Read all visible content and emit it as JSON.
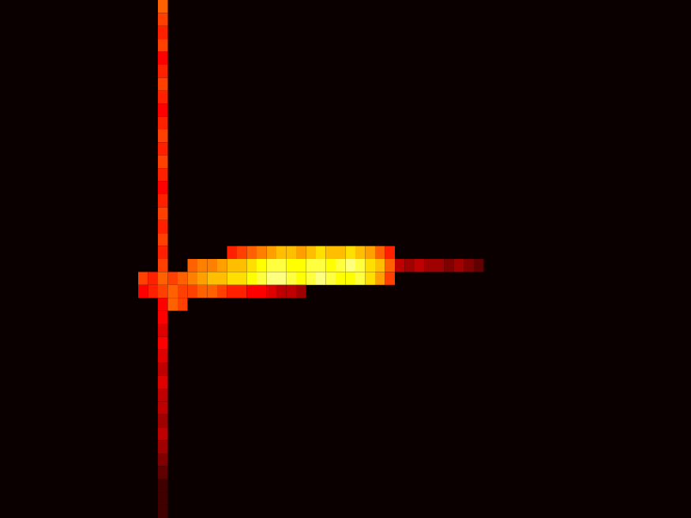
{
  "chart_data": {
    "type": "heatmap",
    "xlim": [
      0,
      70
    ],
    "ylim": [
      0,
      40
    ],
    "tick_labels": false,
    "color_range": [
      0,
      1
    ],
    "cells": [
      [
        16.5,
        39.5,
        0.55
      ],
      [
        16.5,
        38.5,
        0.5
      ],
      [
        16.5,
        37.5,
        0.45
      ],
      [
        16.5,
        36.5,
        0.5
      ],
      [
        16.5,
        35.5,
        0.4
      ],
      [
        16.5,
        34.5,
        0.45
      ],
      [
        16.5,
        33.5,
        0.5
      ],
      [
        16.5,
        32.5,
        0.45
      ],
      [
        16.5,
        31.5,
        0.4
      ],
      [
        16.5,
        30.5,
        0.45
      ],
      [
        16.5,
        29.5,
        0.5
      ],
      [
        16.5,
        28.5,
        0.45
      ],
      [
        16.5,
        27.5,
        0.5
      ],
      [
        16.5,
        26.5,
        0.45
      ],
      [
        16.5,
        25.5,
        0.4
      ],
      [
        16.5,
        24.5,
        0.45
      ],
      [
        16.5,
        23.5,
        0.5
      ],
      [
        16.5,
        22.5,
        0.45
      ],
      [
        16.5,
        21.5,
        0.5
      ],
      [
        16.5,
        15.5,
        0.4
      ],
      [
        16.5,
        14.5,
        0.35
      ],
      [
        16.5,
        13.5,
        0.4
      ],
      [
        16.5,
        12.5,
        0.35
      ],
      [
        16.5,
        11.5,
        0.3
      ],
      [
        16.5,
        10.5,
        0.35
      ],
      [
        16.5,
        9.5,
        0.3
      ],
      [
        16.5,
        8.5,
        0.3
      ],
      [
        16.5,
        7.5,
        0.25
      ],
      [
        16.5,
        6.5,
        0.3
      ],
      [
        16.5,
        5.5,
        0.25
      ],
      [
        16.5,
        4.5,
        0.2
      ],
      [
        16.5,
        3.5,
        0.15
      ],
      [
        16.5,
        2.5,
        0.1
      ],
      [
        16.5,
        1.5,
        0.1
      ],
      [
        16.5,
        0.5,
        0.1
      ],
      [
        16.5,
        20.5,
        0.45
      ],
      [
        23.5,
        20.5,
        0.45
      ],
      [
        24.5,
        20.5,
        0.5
      ],
      [
        25.5,
        20.5,
        0.55
      ],
      [
        26.5,
        20.5,
        0.6
      ],
      [
        27.5,
        20.5,
        0.65
      ],
      [
        28.5,
        20.5,
        0.7
      ],
      [
        29.5,
        20.5,
        0.7
      ],
      [
        30.5,
        20.5,
        0.65
      ],
      [
        31.5,
        20.5,
        0.7
      ],
      [
        32.5,
        20.5,
        0.75
      ],
      [
        33.5,
        20.5,
        0.7
      ],
      [
        34.5,
        20.5,
        0.7
      ],
      [
        35.5,
        20.5,
        0.75
      ],
      [
        36.5,
        20.5,
        0.7
      ],
      [
        37.5,
        20.5,
        0.65
      ],
      [
        38.5,
        20.5,
        0.55
      ],
      [
        39.5,
        20.5,
        0.45
      ],
      [
        16.5,
        19.5,
        0.5
      ],
      [
        19.5,
        19.5,
        0.55
      ],
      [
        20.5,
        19.5,
        0.6
      ],
      [
        21.5,
        19.5,
        0.6
      ],
      [
        22.5,
        19.5,
        0.65
      ],
      [
        23.5,
        19.5,
        0.7
      ],
      [
        24.5,
        19.5,
        0.7
      ],
      [
        25.5,
        19.5,
        0.75
      ],
      [
        26.5,
        19.5,
        0.8
      ],
      [
        27.5,
        19.5,
        0.85
      ],
      [
        28.5,
        19.5,
        0.85
      ],
      [
        29.5,
        19.5,
        0.8
      ],
      [
        30.5,
        19.5,
        0.8
      ],
      [
        31.5,
        19.5,
        0.85
      ],
      [
        32.5,
        19.5,
        0.85
      ],
      [
        33.5,
        19.5,
        0.8
      ],
      [
        34.5,
        19.5,
        0.85
      ],
      [
        35.5,
        19.5,
        0.9
      ],
      [
        36.5,
        19.5,
        0.85
      ],
      [
        37.5,
        19.5,
        0.75
      ],
      [
        38.5,
        19.5,
        0.7
      ],
      [
        39.5,
        19.5,
        0.55
      ],
      [
        40.5,
        19.5,
        0.3
      ],
      [
        41.5,
        19.5,
        0.25
      ],
      [
        42.5,
        19.5,
        0.3
      ],
      [
        43.5,
        19.5,
        0.25
      ],
      [
        44.5,
        19.5,
        0.25
      ],
      [
        45.5,
        19.5,
        0.2
      ],
      [
        46.5,
        19.5,
        0.25
      ],
      [
        47.5,
        19.5,
        0.2
      ],
      [
        48.5,
        19.5,
        0.15
      ],
      [
        14.5,
        18.5,
        0.5
      ],
      [
        15.5,
        18.5,
        0.45
      ],
      [
        16.5,
        18.5,
        0.55
      ],
      [
        17.5,
        18.5,
        0.5
      ],
      [
        18.5,
        18.5,
        0.55
      ],
      [
        19.5,
        18.5,
        0.6
      ],
      [
        20.5,
        18.5,
        0.65
      ],
      [
        21.5,
        18.5,
        0.7
      ],
      [
        22.5,
        18.5,
        0.7
      ],
      [
        23.5,
        18.5,
        0.75
      ],
      [
        24.5,
        18.5,
        0.75
      ],
      [
        25.5,
        18.5,
        0.8
      ],
      [
        26.5,
        18.5,
        0.85
      ],
      [
        27.5,
        18.5,
        0.9
      ],
      [
        28.5,
        18.5,
        0.9
      ],
      [
        29.5,
        18.5,
        0.85
      ],
      [
        30.5,
        18.5,
        0.8
      ],
      [
        31.5,
        18.5,
        0.85
      ],
      [
        32.5,
        18.5,
        0.9
      ],
      [
        33.5,
        18.5,
        0.85
      ],
      [
        34.5,
        18.5,
        0.8
      ],
      [
        35.5,
        18.5,
        0.8
      ],
      [
        36.5,
        18.5,
        0.85
      ],
      [
        37.5,
        18.5,
        0.75
      ],
      [
        38.5,
        18.5,
        0.65
      ],
      [
        39.5,
        18.5,
        0.5
      ],
      [
        14.5,
        17.5,
        0.4
      ],
      [
        15.5,
        17.5,
        0.45
      ],
      [
        16.5,
        17.5,
        0.5
      ],
      [
        17.5,
        17.5,
        0.55
      ],
      [
        18.5,
        17.5,
        0.5
      ],
      [
        19.5,
        17.5,
        0.5
      ],
      [
        20.5,
        17.5,
        0.55
      ],
      [
        21.5,
        17.5,
        0.55
      ],
      [
        22.5,
        17.5,
        0.5
      ],
      [
        23.5,
        17.5,
        0.45
      ],
      [
        24.5,
        17.5,
        0.45
      ],
      [
        25.5,
        17.5,
        0.4
      ],
      [
        26.5,
        17.5,
        0.4
      ],
      [
        27.5,
        17.5,
        0.35
      ],
      [
        28.5,
        17.5,
        0.3
      ],
      [
        29.5,
        17.5,
        0.3
      ],
      [
        30.5,
        17.5,
        0.25
      ],
      [
        16.5,
        16.5,
        0.4
      ],
      [
        17.5,
        16.5,
        0.55
      ],
      [
        18.5,
        16.5,
        0.5
      ]
    ]
  }
}
